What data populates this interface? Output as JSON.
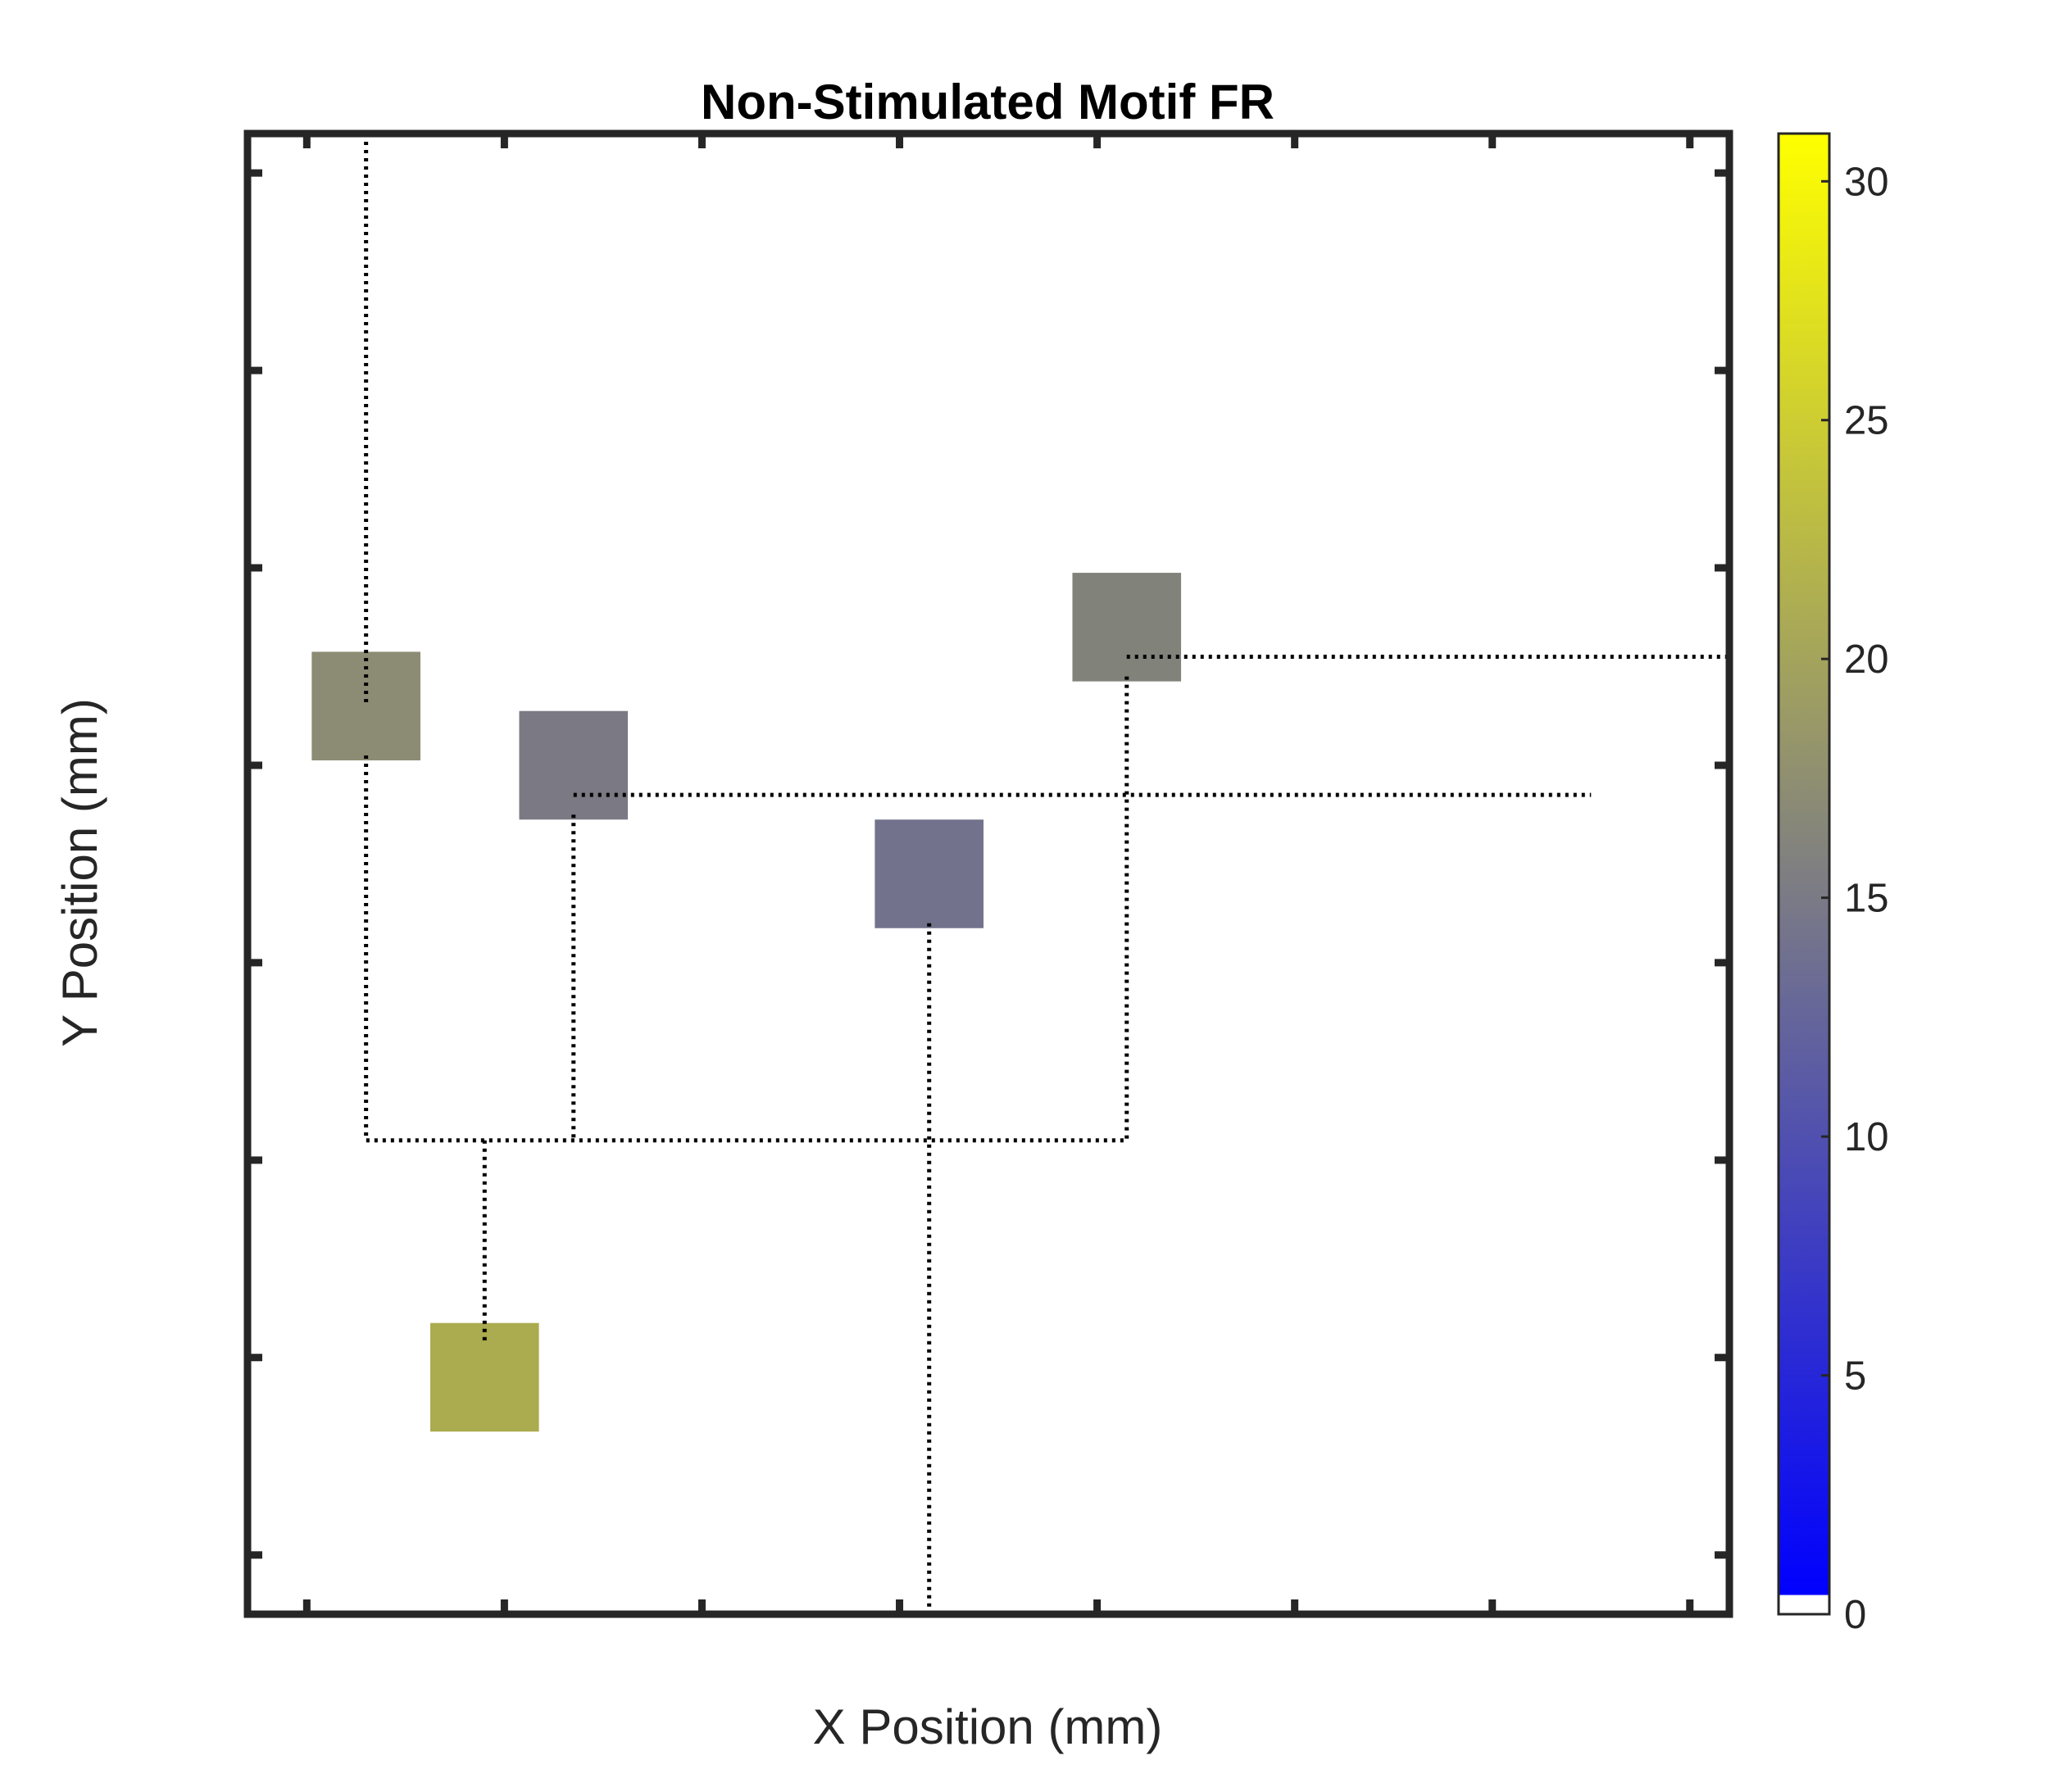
{
  "chart_data": {
    "type": "heatmap",
    "title": "Non-Stimulated Motif FR",
    "xlabel": "X Position (mm)",
    "ylabel": "Y Position (mm)",
    "xlim": [
      0,
      7.5
    ],
    "ylim": [
      0,
      7.5
    ],
    "x_ticks_count": 8,
    "y_ticks_count": 8,
    "x_tick_labels": [],
    "y_tick_labels": [],
    "grid": false,
    "colorbar": {
      "range": [
        0,
        31
      ],
      "ticks": [
        0,
        5,
        10,
        15,
        20,
        25,
        30
      ],
      "tick_labels": [
        "0",
        "5",
        "10",
        "15",
        "20",
        "25",
        "30"
      ],
      "color_low": "#0000ff",
      "color_high": "#ffff00",
      "zero_color": "#ffffff"
    },
    "cells": [
      {
        "x": 0.6,
        "y": 4.6,
        "value": 18.0,
        "color": "#8c8b73"
      },
      {
        "x": 1.65,
        "y": 4.3,
        "value": 15.5,
        "color": "#7b7a84"
      },
      {
        "x": 3.45,
        "y": 3.75,
        "value": 13.5,
        "color": "#72728c"
      },
      {
        "x": 4.45,
        "y": 5.0,
        "value": 16.5,
        "color": "#81827a"
      },
      {
        "x": 1.2,
        "y": 1.2,
        "value": 23.0,
        "color": "#abab4f"
      }
    ],
    "connection_lines": [
      {
        "points": [
          [
            0.6,
            7.5
          ],
          [
            0.6,
            4.6
          ]
        ]
      },
      {
        "points": [
          [
            4.45,
            4.85
          ],
          [
            7.5,
            4.85
          ]
        ]
      },
      {
        "points": [
          [
            1.65,
            4.15
          ],
          [
            6.8,
            4.15
          ]
        ]
      },
      {
        "points": [
          [
            0.6,
            4.35
          ],
          [
            0.6,
            2.4
          ],
          [
            4.45,
            2.4
          ],
          [
            4.45,
            4.75
          ]
        ]
      },
      {
        "points": [
          [
            1.65,
            4.05
          ],
          [
            1.65,
            2.4
          ]
        ]
      },
      {
        "points": [
          [
            3.45,
            3.5
          ],
          [
            3.45,
            0
          ]
        ]
      },
      {
        "points": [
          [
            1.2,
            2.4
          ],
          [
            1.2,
            1.37
          ]
        ]
      }
    ]
  }
}
